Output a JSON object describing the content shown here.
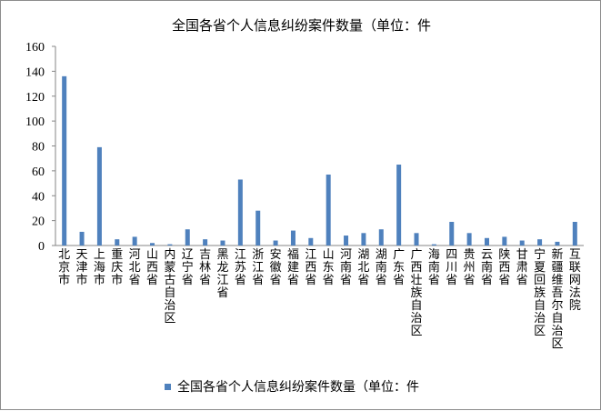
{
  "chart_data": {
    "type": "bar",
    "title": "全国各省个人信息纠纷案件数量（单位：件",
    "categories": [
      "北京市",
      "天津市",
      "上海市",
      "重庆市",
      "河北省",
      "山西省",
      "内蒙古自治区",
      "辽宁省",
      "吉林省",
      "黑龙江省",
      "江苏省",
      "浙江省",
      "安徽省",
      "福建省",
      "江西省",
      "山东省",
      "河南省",
      "湖北省",
      "湖南省",
      "广东省",
      "广西壮族自治区",
      "海南省",
      "四川省",
      "贵州省",
      "云南省",
      "陕西省",
      "甘肃省",
      "宁夏回族自治区",
      "新疆维吾尔自治区",
      "互联网法院"
    ],
    "series": [
      {
        "name": "全国各省个人信息纠纷案件数量（单位：件",
        "values": [
          136,
          11,
          79,
          5,
          7,
          2,
          1,
          13,
          5,
          4,
          53,
          28,
          4,
          12,
          6,
          57,
          8,
          10,
          13,
          65,
          10,
          1,
          19,
          10,
          6,
          7,
          4,
          5,
          3,
          19
        ]
      }
    ],
    "yticks": [
      0,
      20,
      40,
      60,
      80,
      100,
      120,
      140,
      160
    ],
    "ylim": [
      0,
      160
    ],
    "grid": false,
    "legend_position": "bottom",
    "bar_color": "#4f81bd"
  }
}
